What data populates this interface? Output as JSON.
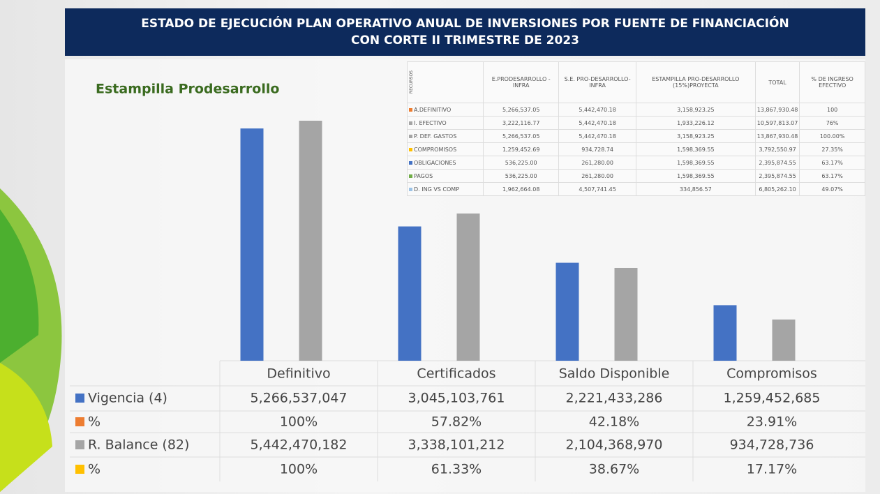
{
  "header": {
    "title": "ESTADO DE EJECUCIÓN PLAN OPERATIVO ANUAL DE INVERSIONES POR FUENTE DE FINANCIACIÓN CON CORTE II TRIMESTRE DE 2023"
  },
  "chart_data": {
    "type": "bar",
    "subtitle": "Estampilla Prodesarrollo",
    "categories": [
      "Definitivo",
      "Certificados",
      "Saldo Disponible",
      "Compromisos"
    ],
    "series": [
      {
        "name": "Vigencia (4)",
        "color": "#4472c4",
        "values": [
          5266537047,
          3045103761,
          2221433286,
          1259452685
        ],
        "value_labels": [
          "5,266,537,047",
          "3,045,103,761",
          "2,221,433,286",
          "1,259,452,685"
        ]
      },
      {
        "name": "%",
        "color": "#ed7d31",
        "values": [
          100,
          57.82,
          42.18,
          23.91
        ],
        "value_labels": [
          "100%",
          "57.82%",
          "42.18%",
          "23.91%"
        ]
      },
      {
        "name": "R. Balance (82)",
        "color": "#a5a5a5",
        "values": [
          5442470182,
          3338101212,
          2104368970,
          934728736
        ],
        "value_labels": [
          "5,442,470,182",
          "3,338,101,212",
          "2,104,368,970",
          "934,728,736"
        ]
      },
      {
        "name": "%",
        "color": "#ffc000",
        "values": [
          100,
          61.33,
          38.67,
          17.17
        ],
        "value_labels": [
          "100%",
          "61.33%",
          "38.67%",
          "17.17%"
        ]
      }
    ]
  },
  "inset_table": {
    "corner": "RECURSOS",
    "columns": [
      "E.PRODESARROLLO - INFRA",
      "S.E. PRO-DESARROLLO-INFRA",
      "ESTAMPILLA PRO-DESARROLLO (15%)PROYECTA",
      "TOTAL",
      "% DE INGRESO EFECTIVO"
    ],
    "rows": [
      {
        "label": "A.DEFINITIVO",
        "color": "#ed7d31",
        "cells": [
          "5,266,537.05",
          "5,442,470.18",
          "3,158,923.25",
          "13,867,930.48",
          "100"
        ]
      },
      {
        "label": "I. EFECTIVO",
        "color": "#a5a5a5",
        "cells": [
          "3,222,116.77",
          "5,442,470.18",
          "1,933,226.12",
          "10,597,813.07",
          "76%"
        ]
      },
      {
        "label": "P. DEF. GASTOS",
        "color": "#a5a5a5",
        "cells": [
          "5,266,537.05",
          "5,442,470.18",
          "3,158,923.25",
          "13,867,930.48",
          "100.00%"
        ]
      },
      {
        "label": "COMPROMISOS",
        "color": "#ffc000",
        "cells": [
          "1,259,452.69",
          "934,728.74",
          "1,598,369.55",
          "3,792,550.97",
          "27.35%"
        ]
      },
      {
        "label": "OBLIGACIONES",
        "color": "#4472c4",
        "cells": [
          "536,225.00",
          "261,280.00",
          "1,598,369.55",
          "2,395,874.55",
          "63.17%"
        ]
      },
      {
        "label": "PAGOS",
        "color": "#70ad47",
        "cells": [
          "536,225.00",
          "261,280.00",
          "1,598,369.55",
          "2,395,874.55",
          "63.17%"
        ]
      },
      {
        "label": "D. ING VS COMP",
        "color": "#9dc3e6",
        "cells": [
          "1,962,664.08",
          "4,507,741.45",
          "334,856.57",
          "6,805,262.10",
          "49.07%"
        ]
      }
    ]
  }
}
